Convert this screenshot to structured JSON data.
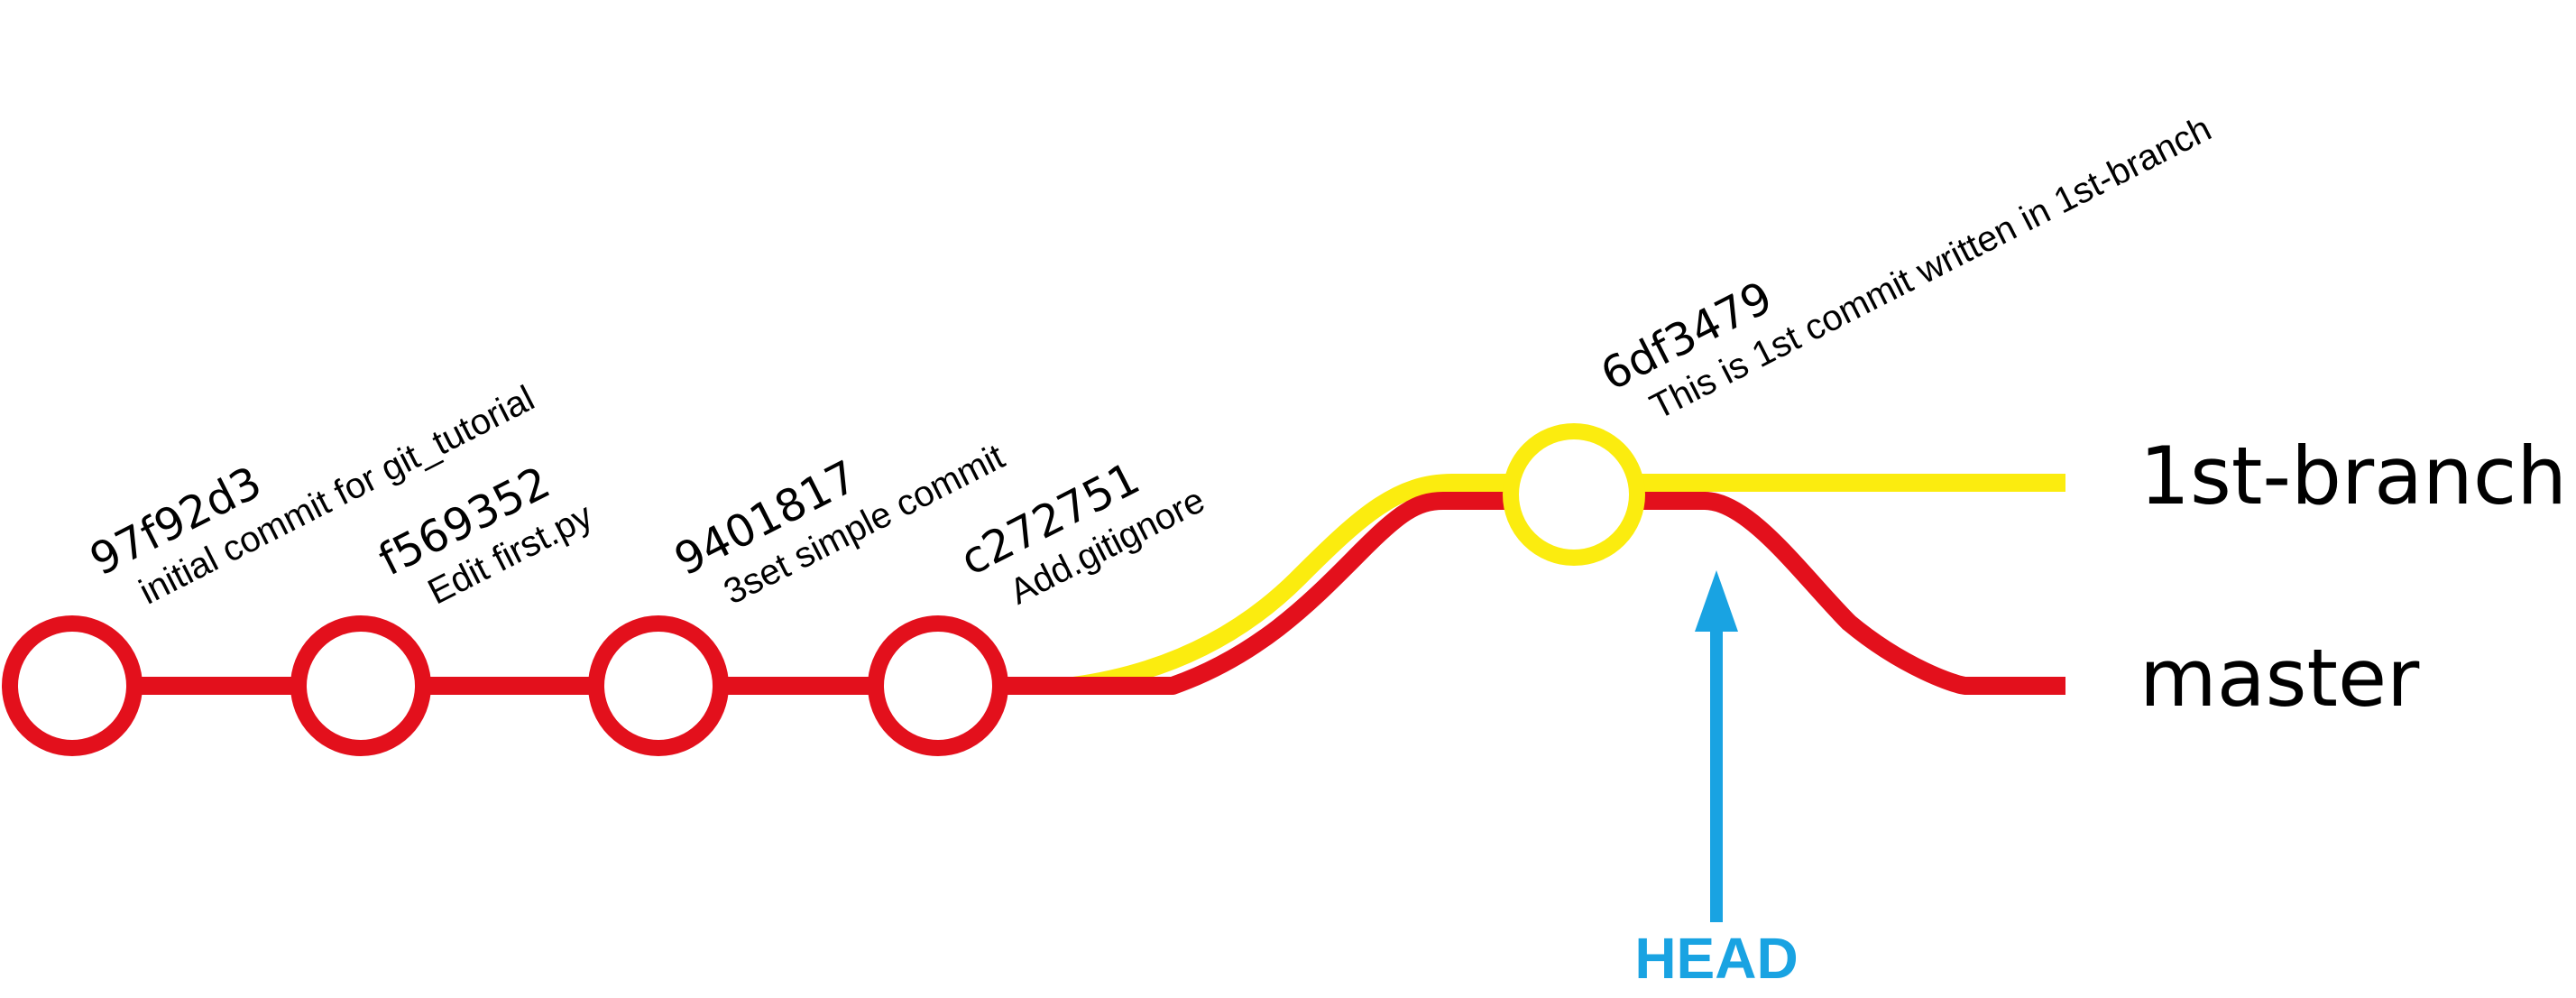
{
  "colors": {
    "master": "#e3101c",
    "branch": "#fbec0f",
    "head": "#19a3e2",
    "text": "#000000",
    "background": "#ffffff"
  },
  "commits": [
    {
      "hash": "97f92d3",
      "message": "initial commit for git_tutorial",
      "branch": "master"
    },
    {
      "hash": "f569352",
      "message": "Edit first.py",
      "branch": "master"
    },
    {
      "hash": "9401817",
      "message": "3set simple commit",
      "branch": "master"
    },
    {
      "hash": "c272751",
      "message": "Add.gitignore",
      "branch": "master"
    },
    {
      "hash": "6df3479",
      "message": "This is 1st commit written in 1st-branch",
      "branch": "1st-branch"
    }
  ],
  "branches": {
    "first_branch": "1st-branch",
    "master": "master"
  },
  "head": {
    "label": "HEAD"
  }
}
